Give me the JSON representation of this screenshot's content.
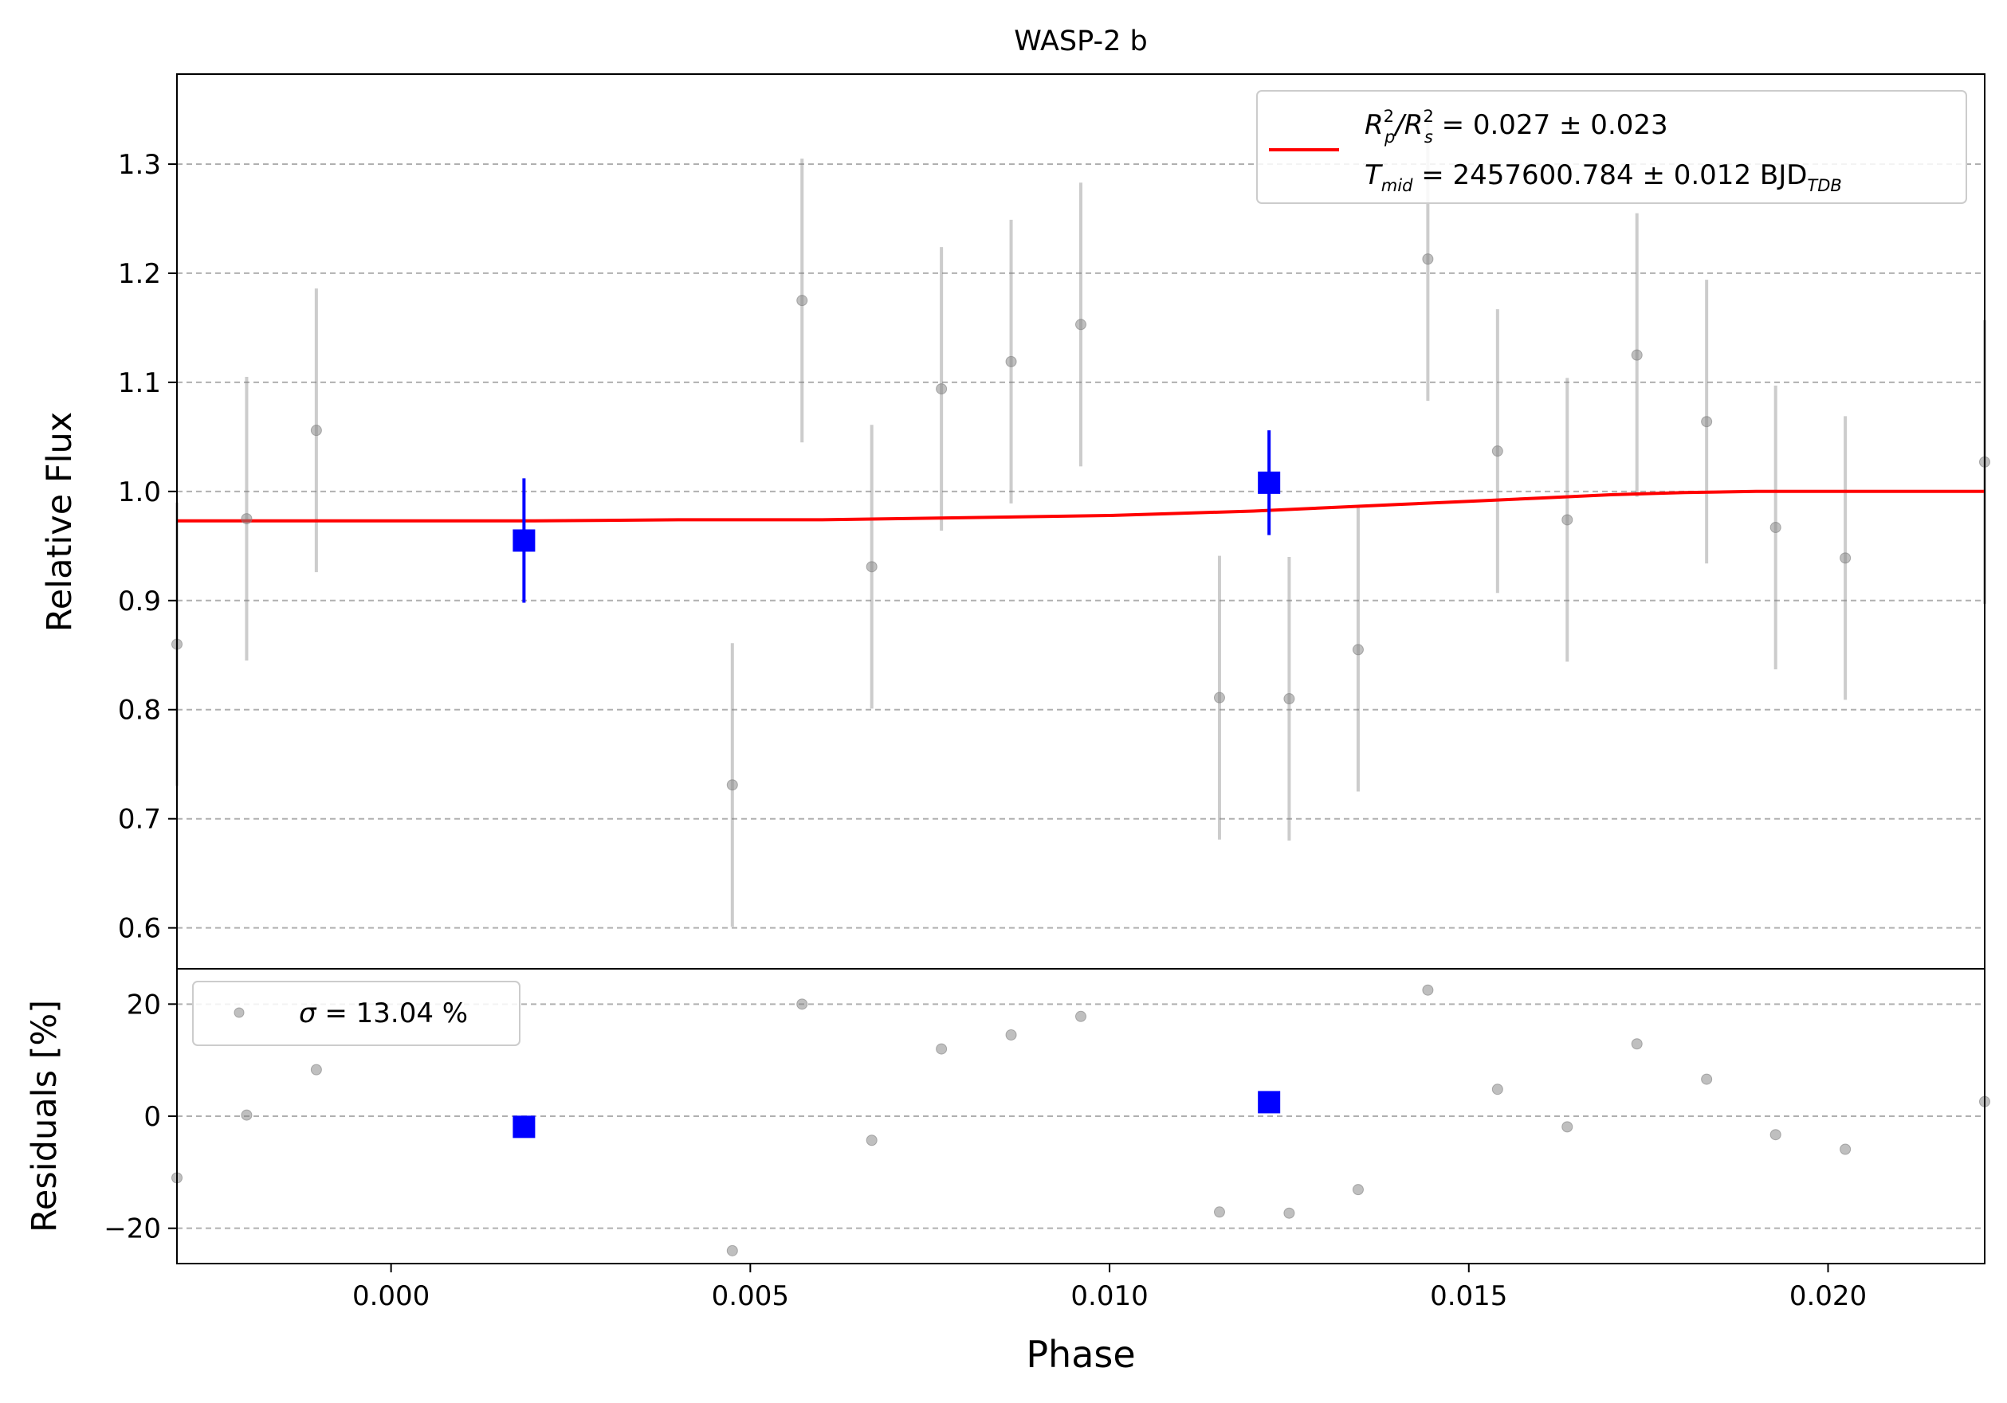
{
  "chart_data": [
    {
      "type": "scatter",
      "title": "WASP-2 b",
      "xlabel": "",
      "ylabel": "Relative Flux",
      "xlim": [
        -0.00298,
        0.02218
      ],
      "ylim": [
        0.5625,
        1.3825
      ],
      "grid": "horizontal dashed",
      "yticks": [
        "0.6",
        "0.7",
        "0.8",
        "0.9",
        "1.0",
        "1.1",
        "1.2",
        "1.3"
      ],
      "legend": {
        "placement": "top-right",
        "line1": {
          "sym": "R",
          "sub1": "p",
          "sup1": "2",
          "sep": "/R",
          "sub2": "s",
          "sup2": "2",
          "rest": " = 0.027 ± 0.023"
        },
        "line2": {
          "sym": "T",
          "sub": "mid",
          "rest": " = 2457600.784 ± 0.012 BJD",
          "unit_sub": "TDB"
        }
      },
      "series": [
        {
          "role": "data",
          "color": "#808080",
          "x": [
            -0.00298,
            -0.00201,
            -0.00104,
            0.00475,
            0.00572,
            0.00669,
            0.00766,
            0.00863,
            0.0096,
            0.01153,
            0.0125,
            0.01346,
            0.01443,
            0.0154,
            0.01637,
            0.01734,
            0.01831,
            0.01927,
            0.02024,
            0.02218
          ],
          "y": [
            0.86,
            0.975,
            1.056,
            0.731,
            1.175,
            0.931,
            1.094,
            1.119,
            1.153,
            0.811,
            0.81,
            0.855,
            1.213,
            1.037,
            0.974,
            1.125,
            1.064,
            0.967,
            0.939,
            1.027
          ],
          "err": [
            0.13,
            0.13,
            0.13,
            0.13,
            0.13,
            0.13,
            0.13,
            0.13,
            0.13,
            0.13,
            0.13,
            0.13,
            0.13,
            0.13,
            0.13,
            0.13,
            0.13,
            0.13,
            0.13,
            0.13
          ]
        },
        {
          "role": "binned",
          "color": "#0000ff",
          "x": [
            0.00185,
            0.01222
          ],
          "y": [
            0.955,
            1.008
          ],
          "err": [
            0.057,
            0.048
          ]
        },
        {
          "role": "model",
          "color": "#ff0000",
          "x": [
            -0.00298,
            0.0,
            0.002,
            0.004,
            0.006,
            0.008,
            0.01,
            0.011,
            0.012,
            0.013,
            0.014,
            0.015,
            0.016,
            0.017,
            0.018,
            0.019,
            0.02,
            0.021,
            0.02218
          ],
          "y": [
            0.973,
            0.973,
            0.973,
            0.974,
            0.974,
            0.976,
            0.978,
            0.98,
            0.982,
            0.985,
            0.988,
            0.991,
            0.994,
            0.997,
            0.999,
            1.0,
            1.0,
            1.0,
            1.0
          ]
        }
      ]
    },
    {
      "type": "scatter",
      "title": "",
      "xlabel": "Phase",
      "ylabel": "Residuals [%]",
      "xlim": [
        -0.00298,
        0.02218
      ],
      "ylim": [
        -26.3,
        26.3
      ],
      "grid": "horizontal dashed",
      "xticks": [
        "0.000",
        "0.005",
        "0.010",
        "0.015",
        "0.020"
      ],
      "yticks": [
        "−20",
        "0",
        "20"
      ],
      "legend": {
        "placement": "top-left",
        "sym": "σ",
        "rest": " = 13.04 %"
      },
      "series": [
        {
          "role": "residuals",
          "color": "#808080",
          "x": [
            -0.00298,
            -0.00201,
            -0.00104,
            0.00475,
            0.00572,
            0.00669,
            0.00766,
            0.00863,
            0.0096,
            0.01153,
            0.0125,
            0.01346,
            0.01443,
            0.0154,
            0.01637,
            0.01734,
            0.01831,
            0.01927,
            0.02024,
            0.02218
          ],
          "y": [
            -11.0,
            0.2,
            8.3,
            -24.0,
            20.0,
            -4.3,
            12.0,
            14.5,
            17.8,
            -17.1,
            -17.3,
            -13.1,
            22.5,
            4.8,
            -1.9,
            12.9,
            6.6,
            -3.3,
            -5.9,
            2.6
          ]
        },
        {
          "role": "binned",
          "color": "#0000ff",
          "x": [
            0.00185,
            0.01222
          ],
          "y": [
            -1.9,
            2.5
          ]
        }
      ]
    }
  ]
}
